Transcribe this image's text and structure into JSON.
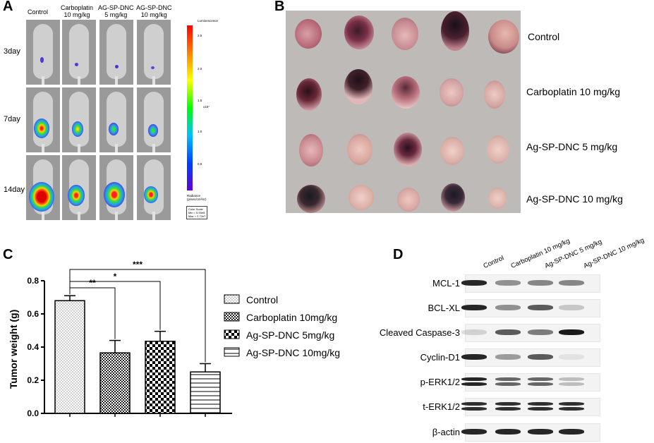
{
  "figure": {
    "panel_labels": [
      "A",
      "B",
      "C",
      "D"
    ]
  },
  "panelA": {
    "column_headers": [
      "Control",
      "Carboplatin\n10 mg/kg",
      "AG-SP-DNC\n5 mg/kg",
      "AG-SP-DNC\n10 mg/kg"
    ],
    "row_labels": [
      "3day",
      "7day",
      "14day"
    ],
    "colorbar": {
      "title": "Luminescence",
      "ticks": [
        "2.5",
        "2.0",
        "1.5",
        "1.0",
        "0.5"
      ],
      "multiplier": "x10⁷",
      "unit": "Radiance\n(p/sec/cm²/sr)",
      "scale": "Color Scale\nMin = 5.90e5\nMax = 2.72e7"
    }
  },
  "panelB": {
    "row_labels": [
      "Control",
      "Carboplatin 10 mg/kg",
      "Ag-SP-DNC 5 mg/kg",
      "Ag-SP-DNC 10 mg/kg"
    ]
  },
  "chart_data": {
    "type": "bar",
    "categories": [
      "Control",
      "Carboplatin 10mg/kg",
      "Ag-SP-DNC 5mg/kg",
      "Ag-SP-DNC 10mg/kg"
    ],
    "values": [
      0.68,
      0.365,
      0.435,
      0.25
    ],
    "errors": [
      0.03,
      0.075,
      0.06,
      0.05
    ],
    "ylabel": "Tumor weight (g)",
    "xlabel": "",
    "ylim": [
      0,
      0.8
    ],
    "yticks": [
      "0.0",
      "0.2",
      "0.4",
      "0.6",
      "0.8"
    ],
    "significance": [
      {
        "compare": [
          0,
          1
        ],
        "label": "**"
      },
      {
        "compare": [
          0,
          2
        ],
        "label": "*"
      },
      {
        "compare": [
          0,
          3
        ],
        "label": "***"
      }
    ],
    "legend": [
      "Control",
      "Carboplatin 10mg/kg",
      "Ag-SP-DNC 5mg/kg",
      "Ag-SP-DNC 10mg/kg"
    ],
    "patterns": [
      "dots",
      "fine-check",
      "checker",
      "horizontal-lines"
    ],
    "legend_position": "right"
  },
  "panelD": {
    "column_headers": [
      "Control",
      "Carboplatin 10 mg/kg",
      "Ag-SP-DNC 5 mg/kg",
      "Ag-SP-DNC 10 mg/kg"
    ],
    "blots": [
      {
        "label": "MCL-1",
        "levels": [
          0.95,
          0.45,
          0.5,
          0.5
        ],
        "double": false
      },
      {
        "label": "BCL-XL",
        "levels": [
          0.95,
          0.45,
          0.7,
          0.2
        ],
        "double": false
      },
      {
        "label": "Cleaved Caspase-3",
        "levels": [
          0.15,
          0.7,
          0.55,
          1.0
        ],
        "double": false
      },
      {
        "label": "Cyclin-D1",
        "levels": [
          0.95,
          0.4,
          0.7,
          0.08
        ],
        "double": false
      },
      {
        "label": "p-ERK1/2",
        "levels": [
          0.95,
          0.65,
          0.65,
          0.25
        ],
        "double": true
      },
      {
        "label": "t-ERK1/2",
        "levels": [
          0.9,
          0.9,
          0.9,
          0.9
        ],
        "double": true
      },
      {
        "label": "β-actin",
        "levels": [
          0.95,
          0.95,
          0.95,
          0.95
        ],
        "double": false
      }
    ]
  }
}
